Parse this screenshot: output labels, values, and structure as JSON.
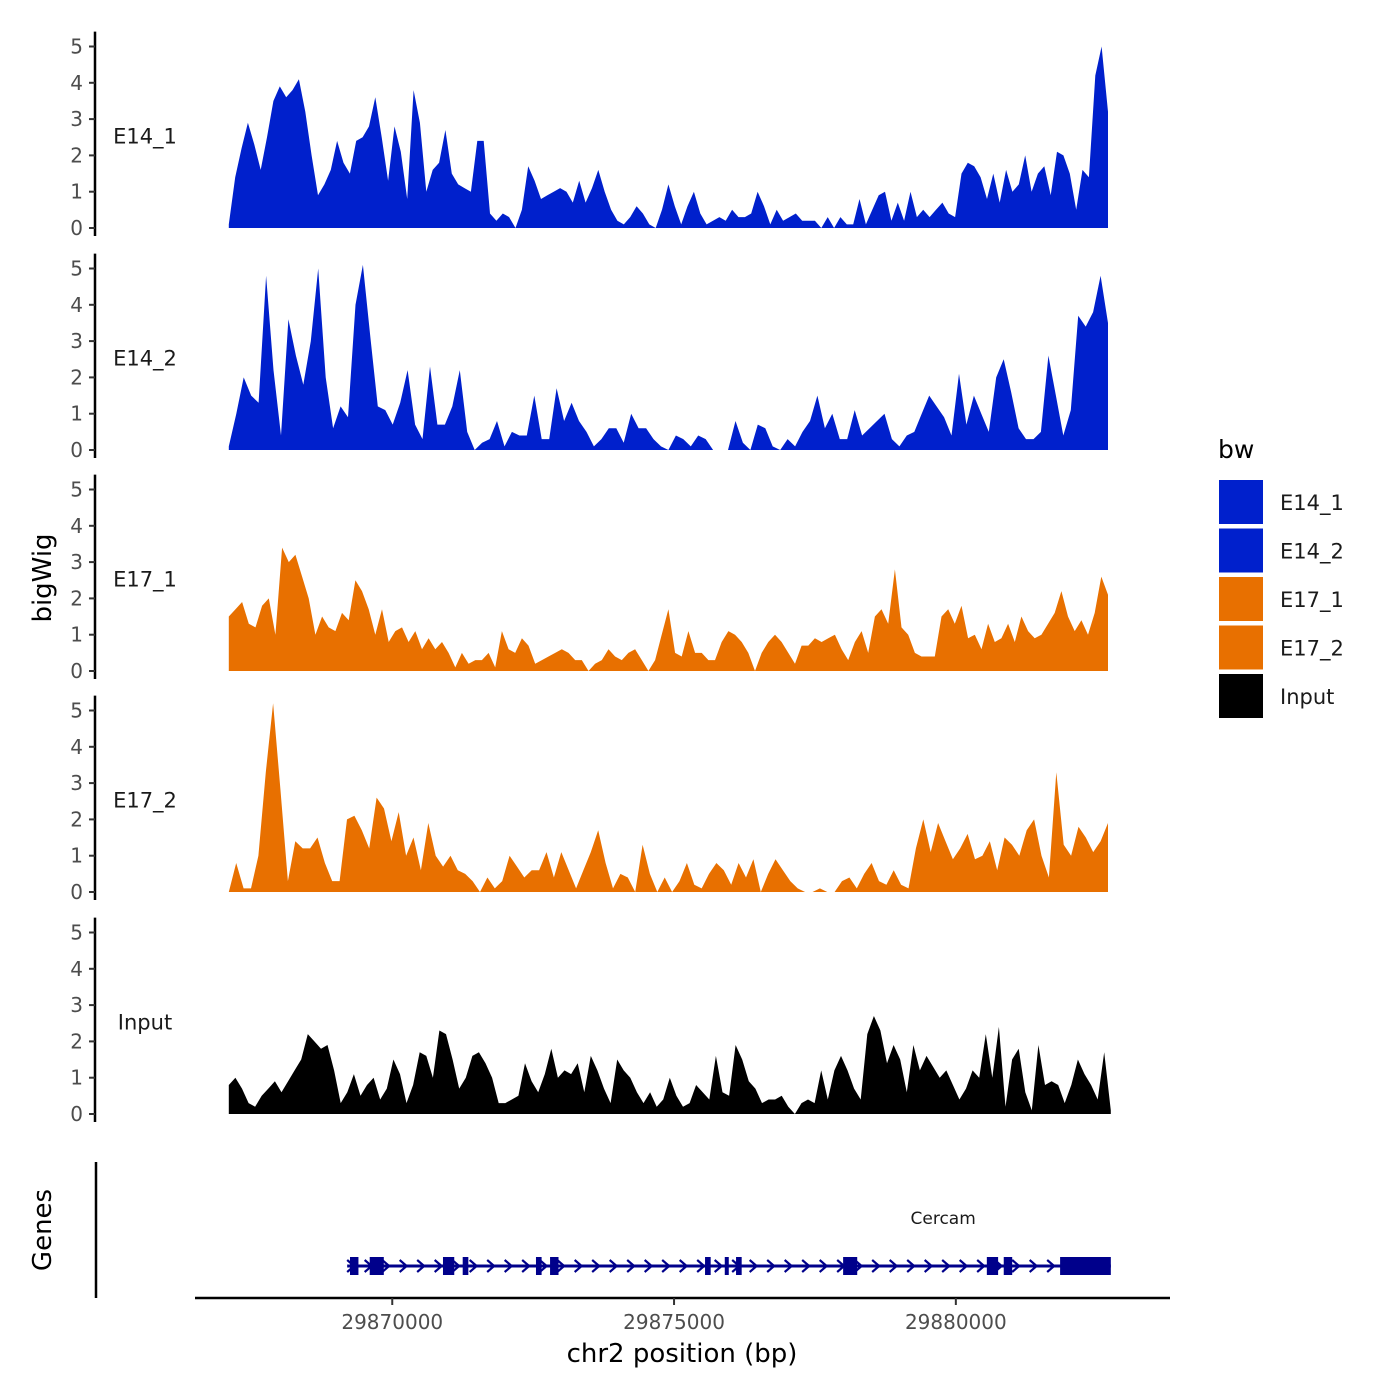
{
  "chart_data": {
    "type": "area",
    "title": "",
    "xlabel": "chr2 position (bp)",
    "ylabel": "bigWig",
    "genes_label": "Genes",
    "xlim": [
      29866500,
      29883800
    ],
    "ylim": [
      0,
      5.3
    ],
    "x_ticks": [
      29870000,
      29875000,
      29880000
    ],
    "x_tick_labels": [
      "29870000",
      "29875000",
      "29880000"
    ],
    "y_ticks": [
      0,
      1,
      2,
      3,
      4,
      5
    ],
    "y_tick_labels": [
      "0",
      "1",
      "2",
      "3",
      "4",
      "5"
    ],
    "legend": {
      "title": "bw",
      "position": "right",
      "entries": [
        {
          "label": "E14_1",
          "color": "#0020cc"
        },
        {
          "label": "E14_2",
          "color": "#0020cc"
        },
        {
          "label": "E17_1",
          "color": "#e87000"
        },
        {
          "label": "E17_2",
          "color": "#e87000"
        },
        {
          "label": "Input",
          "color": "#000000"
        }
      ]
    },
    "series": [
      {
        "name": "E14_1",
        "color": "#0020cc",
        "x_start": 29867100,
        "x_end": 29882700,
        "values": [
          0.1,
          1.4,
          2.2,
          2.9,
          2.3,
          1.6,
          2.5,
          3.5,
          3.9,
          3.6,
          3.8,
          4.1,
          3.2,
          2.0,
          0.9,
          1.2,
          1.6,
          2.4,
          1.8,
          1.5,
          2.4,
          2.5,
          2.8,
          3.6,
          2.5,
          1.3,
          2.8,
          2.1,
          0.8,
          3.8,
          2.9,
          1.0,
          1.6,
          1.8,
          2.7,
          1.5,
          1.2,
          1.1,
          1.0,
          2.4,
          2.4,
          0.4,
          0.2,
          0.4,
          0.3,
          0.0,
          0.5,
          1.7,
          1.3,
          0.8,
          0.9,
          1.0,
          1.1,
          1.0,
          0.7,
          1.3,
          0.7,
          1.1,
          1.6,
          1.0,
          0.5,
          0.2,
          0.1,
          0.3,
          0.6,
          0.4,
          0.1,
          0.0,
          0.5,
          1.2,
          0.6,
          0.1,
          0.6,
          1.0,
          0.4,
          0.1,
          0.2,
          0.3,
          0.2,
          0.5,
          0.3,
          0.3,
          0.4,
          1.0,
          0.6,
          0.1,
          0.5,
          0.2,
          0.3,
          0.4,
          0.2,
          0.2,
          0.2,
          0.0,
          0.3,
          0.0,
          0.3,
          0.1,
          0.1,
          0.8,
          0.1,
          0.5,
          0.9,
          1.0,
          0.2,
          0.7,
          0.2,
          1.0,
          0.3,
          0.5,
          0.3,
          0.5,
          0.7,
          0.4,
          0.3,
          1.5,
          1.8,
          1.7,
          1.4,
          0.8,
          1.5,
          0.7,
          1.6,
          1.0,
          1.2,
          2.0,
          1.0,
          1.5,
          1.7,
          0.9,
          2.1,
          2.0,
          1.5,
          0.5,
          1.6,
          1.4,
          4.2,
          5.0,
          3.2
        ]
      },
      {
        "name": "E14_2",
        "color": "#0020cc",
        "x_start": 29867100,
        "x_end": 29882700,
        "values": [
          0.1,
          1.0,
          2.0,
          1.5,
          1.3,
          4.8,
          2.2,
          0.4,
          3.6,
          2.6,
          1.8,
          3.0,
          5.0,
          2.0,
          0.6,
          1.2,
          0.9,
          4.0,
          5.1,
          3.1,
          1.2,
          1.1,
          0.7,
          1.3,
          2.2,
          0.7,
          0.3,
          2.3,
          0.7,
          0.7,
          1.2,
          2.2,
          0.5,
          0.0,
          0.2,
          0.3,
          0.8,
          0.1,
          0.5,
          0.4,
          0.4,
          1.5,
          0.3,
          0.3,
          1.7,
          0.8,
          1.3,
          0.8,
          0.5,
          0.1,
          0.3,
          0.6,
          0.6,
          0.2,
          1.0,
          0.6,
          0.6,
          0.3,
          0.1,
          0.0,
          0.4,
          0.3,
          0.1,
          0.4,
          0.3,
          0.0,
          0.0,
          0.0,
          0.8,
          0.2,
          0.0,
          0.7,
          0.6,
          0.1,
          0.0,
          0.3,
          0.1,
          0.5,
          0.8,
          1.5,
          0.6,
          1.0,
          0.3,
          0.3,
          1.1,
          0.4,
          0.6,
          0.8,
          1.0,
          0.3,
          0.1,
          0.4,
          0.5,
          1.0,
          1.5,
          1.2,
          0.9,
          0.4,
          2.1,
          0.7,
          1.5,
          1.0,
          0.5,
          2.0,
          2.5,
          1.6,
          0.6,
          0.3,
          0.3,
          0.5,
          2.6,
          1.5,
          0.4,
          1.1,
          3.7,
          3.4,
          3.8,
          4.8,
          3.5
        ]
      },
      {
        "name": "E17_1",
        "color": "#e87000",
        "x_start": 29867100,
        "x_end": 29882700,
        "values": [
          1.5,
          1.7,
          1.9,
          1.3,
          1.2,
          1.8,
          2.0,
          1.0,
          3.4,
          3.0,
          3.2,
          2.6,
          2.0,
          1.0,
          1.5,
          1.2,
          1.1,
          1.6,
          1.4,
          2.5,
          2.2,
          1.7,
          1.0,
          1.7,
          0.8,
          1.1,
          1.2,
          0.8,
          1.1,
          0.6,
          0.9,
          0.6,
          0.8,
          0.5,
          0.1,
          0.5,
          0.2,
          0.3,
          0.3,
          0.5,
          0.1,
          1.1,
          0.6,
          0.5,
          0.9,
          0.7,
          0.2,
          0.3,
          0.4,
          0.5,
          0.6,
          0.5,
          0.3,
          0.3,
          0.0,
          0.2,
          0.3,
          0.6,
          0.4,
          0.3,
          0.5,
          0.6,
          0.3,
          0.0,
          0.3,
          1.0,
          1.7,
          0.5,
          0.4,
          1.1,
          0.5,
          0.5,
          0.3,
          0.3,
          0.8,
          1.1,
          1.0,
          0.8,
          0.5,
          0.0,
          0.5,
          0.8,
          1.0,
          0.8,
          0.5,
          0.2,
          0.7,
          0.7,
          0.9,
          0.8,
          0.9,
          1.0,
          0.6,
          0.3,
          0.8,
          1.1,
          0.5,
          1.5,
          1.7,
          1.3,
          2.8,
          1.2,
          1.0,
          0.5,
          0.4,
          0.4,
          0.4,
          1.5,
          1.7,
          1.3,
          1.8,
          0.9,
          1.0,
          0.6,
          1.3,
          0.8,
          0.9,
          1.3,
          0.8,
          1.5,
          1.1,
          0.9,
          1.0,
          1.3,
          1.6,
          2.2,
          1.5,
          1.1,
          1.4,
          1.0,
          1.6,
          2.6,
          2.1
        ]
      },
      {
        "name": "E17_2",
        "color": "#e87000",
        "x_start": 29867100,
        "x_end": 29882700,
        "values": [
          0.0,
          0.8,
          0.1,
          0.1,
          1.0,
          3.3,
          5.2,
          2.8,
          0.3,
          1.4,
          1.2,
          1.2,
          1.5,
          0.8,
          0.3,
          0.3,
          2.0,
          2.1,
          1.7,
          1.2,
          2.6,
          2.3,
          1.4,
          2.2,
          1.0,
          1.5,
          0.6,
          1.9,
          1.0,
          0.7,
          1.0,
          0.6,
          0.5,
          0.3,
          0.0,
          0.4,
          0.1,
          0.3,
          1.0,
          0.7,
          0.4,
          0.6,
          0.6,
          1.1,
          0.4,
          1.1,
          0.6,
          0.1,
          0.6,
          1.1,
          1.7,
          0.8,
          0.1,
          0.5,
          0.4,
          0.0,
          1.3,
          0.5,
          0.0,
          0.4,
          0.0,
          0.3,
          0.8,
          0.2,
          0.1,
          0.5,
          0.8,
          0.6,
          0.2,
          0.8,
          0.4,
          0.9,
          0.0,
          0.5,
          0.9,
          0.6,
          0.3,
          0.1,
          0.0,
          0.0,
          0.1,
          0.0,
          0.0,
          0.3,
          0.4,
          0.1,
          0.5,
          0.8,
          0.3,
          0.2,
          0.6,
          0.2,
          0.1,
          1.2,
          2.0,
          1.1,
          1.9,
          1.4,
          0.9,
          1.2,
          1.6,
          0.9,
          1.0,
          1.4,
          0.6,
          1.5,
          1.3,
          1.0,
          1.7,
          2.0,
          1.0,
          0.4,
          3.3,
          1.3,
          1.0,
          1.8,
          1.5,
          1.1,
          1.4,
          1.9
        ]
      },
      {
        "name": "Input",
        "color": "#000000",
        "x_start": 29867100,
        "x_end": 29882750,
        "values": [
          0.8,
          1.0,
          0.7,
          0.3,
          0.2,
          0.5,
          0.7,
          0.9,
          0.6,
          0.9,
          1.2,
          1.5,
          2.2,
          2.0,
          1.8,
          1.9,
          1.2,
          0.3,
          0.6,
          1.1,
          0.5,
          0.8,
          1.0,
          0.4,
          0.7,
          1.5,
          1.1,
          0.3,
          0.8,
          1.7,
          1.6,
          1.0,
          2.3,
          2.2,
          1.5,
          0.7,
          1.0,
          1.6,
          1.7,
          1.4,
          1.0,
          0.3,
          0.3,
          0.4,
          0.5,
          1.4,
          0.9,
          0.6,
          1.1,
          1.8,
          1.0,
          1.2,
          1.1,
          1.4,
          0.6,
          1.6,
          1.2,
          0.7,
          0.3,
          1.5,
          1.2,
          1.0,
          0.6,
          0.3,
          0.6,
          0.2,
          0.4,
          1.0,
          0.5,
          0.2,
          0.3,
          0.8,
          0.6,
          0.4,
          1.6,
          0.6,
          0.5,
          1.9,
          1.5,
          0.9,
          0.7,
          0.3,
          0.4,
          0.4,
          0.5,
          0.2,
          0.0,
          0.3,
          0.4,
          0.3,
          1.2,
          0.4,
          1.2,
          1.6,
          1.2,
          0.7,
          0.4,
          2.2,
          2.7,
          2.3,
          1.4,
          1.9,
          1.5,
          0.6,
          1.9,
          1.2,
          1.6,
          1.3,
          1.0,
          1.2,
          0.8,
          0.4,
          0.7,
          1.2,
          1.0,
          2.2,
          1.0,
          2.4,
          0.2,
          1.5,
          1.8,
          0.6,
          0.1,
          1.9,
          0.8,
          0.9,
          0.8,
          0.3,
          0.8,
          1.5,
          1.1,
          0.8,
          0.4,
          1.7,
          0.1
        ]
      }
    ],
    "gene": {
      "name": "Cercam",
      "strand": "+",
      "color": "#00008b",
      "start": 29869200,
      "end": 29882750,
      "exons": [
        [
          29869250,
          29869400
        ],
        [
          29869600,
          29869850
        ],
        [
          29870900,
          29871100
        ],
        [
          29871250,
          29871350
        ],
        [
          29872550,
          29872650
        ],
        [
          29872800,
          29872950
        ],
        [
          29875550,
          29875650
        ],
        [
          29875900,
          29875950
        ],
        [
          29876100,
          29876200
        ],
        [
          29878000,
          29878250
        ],
        [
          29880550,
          29880750
        ],
        [
          29880850,
          29881000
        ],
        [
          29881850,
          29882750
        ]
      ]
    }
  }
}
